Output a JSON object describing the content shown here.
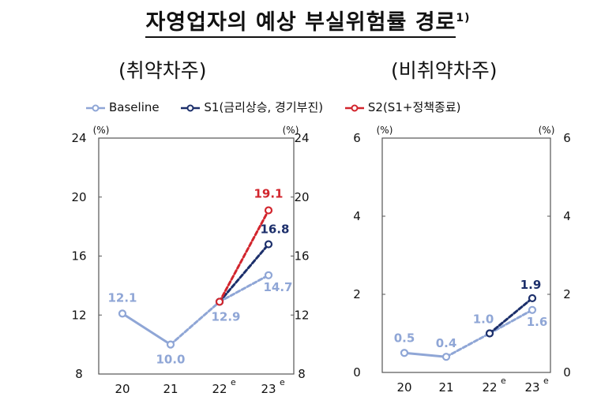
{
  "title": "자영업자의 예상 부실위험률 경로",
  "title_footnote": "1)",
  "colors": {
    "baseline": "#8fa6d6",
    "s1": "#1c2f6b",
    "s2": "#d2252d",
    "frame": "#555555"
  },
  "legend": [
    {
      "key": "baseline",
      "label": "Baseline"
    },
    {
      "key": "s1",
      "label": "S1(금리상승, 경기부진)"
    },
    {
      "key": "s2",
      "label": "S2(S1+정책종료)"
    }
  ],
  "chart_data": [
    {
      "type": "line",
      "subtitle": "(취약차주)",
      "unit_label": "(%)",
      "categories": [
        "20",
        "21",
        "22",
        "23"
      ],
      "category_superscripts": [
        "",
        "",
        "e",
        "e"
      ],
      "ylim": [
        8,
        24
      ],
      "yticks": [
        "8",
        "12",
        "16",
        "20",
        "24"
      ],
      "series": [
        {
          "name": "Baseline",
          "key": "baseline",
          "values": [
            12.1,
            10.0,
            12.9,
            14.7
          ],
          "labels": [
            "12.1",
            "10.0",
            "12.9",
            "14.7"
          ]
        },
        {
          "name": "S1(금리상승, 경기부진)",
          "key": "s1",
          "values": [
            null,
            null,
            12.9,
            16.8
          ],
          "labels": [
            "",
            "",
            "",
            "16.8"
          ]
        },
        {
          "name": "S2(S1+정책종료)",
          "key": "s2",
          "values": [
            null,
            null,
            12.9,
            19.1
          ],
          "labels": [
            "",
            "",
            "",
            "19.1"
          ]
        }
      ]
    },
    {
      "type": "line",
      "subtitle": "(비취약차주)",
      "unit_label": "(%)",
      "categories": [
        "20",
        "21",
        "22",
        "23"
      ],
      "category_superscripts": [
        "",
        "",
        "e",
        "e"
      ],
      "ylim": [
        0,
        6
      ],
      "yticks": [
        "0",
        "2",
        "4",
        "6"
      ],
      "series": [
        {
          "name": "Baseline",
          "key": "baseline",
          "values": [
            0.5,
            0.4,
            1.0,
            1.6
          ],
          "labels": [
            "0.5",
            "0.4",
            "1.0",
            "1.6"
          ]
        },
        {
          "name": "S1(금리상승, 경기부진)",
          "key": "s1",
          "values": [
            null,
            null,
            1.0,
            1.9
          ],
          "labels": [
            "",
            "",
            "",
            "1.9"
          ]
        }
      ]
    }
  ]
}
